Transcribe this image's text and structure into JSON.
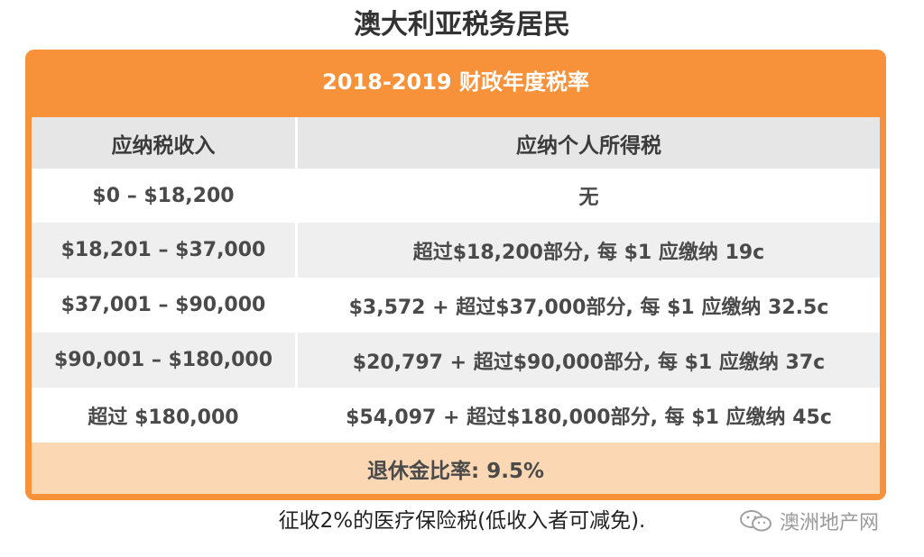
{
  "title": "澳大利亚税务居民",
  "table": {
    "header": "2018-2019 财政年度税率",
    "columns": [
      "应纳税收入",
      "应纳个人所得税"
    ],
    "rows": [
      {
        "income": "$0 – $18,200",
        "tax": "无"
      },
      {
        "income": "$18,201 – $37,000",
        "tax": "超过$18,200部分, 每 $1 应缴纳 19c"
      },
      {
        "income": "$37,001 – $90,000",
        "tax": "$3,572 + 超过$37,000部分, 每 $1 应缴纳 32.5c"
      },
      {
        "income": "$90,001 – $180,000",
        "tax": "$20,797 + 超过$90,000部分, 每 $1 应缴纳 37c"
      },
      {
        "income": "超过 $180,000",
        "tax": "$54,097 + 超过$180,000部分, 每 $1 应缴纳 45c"
      }
    ],
    "footer": "退休金比率: 9.5%"
  },
  "note": "征收2%的医疗保险税(低收入者可减免).",
  "watermark": {
    "text": "澳洲地产网",
    "icon": "wechat-icon"
  },
  "colors": {
    "accent": "#f7923a",
    "header_bg": "#e6e6e6",
    "stripe": "#efefef",
    "footer_bg": "#fbd7b3"
  }
}
